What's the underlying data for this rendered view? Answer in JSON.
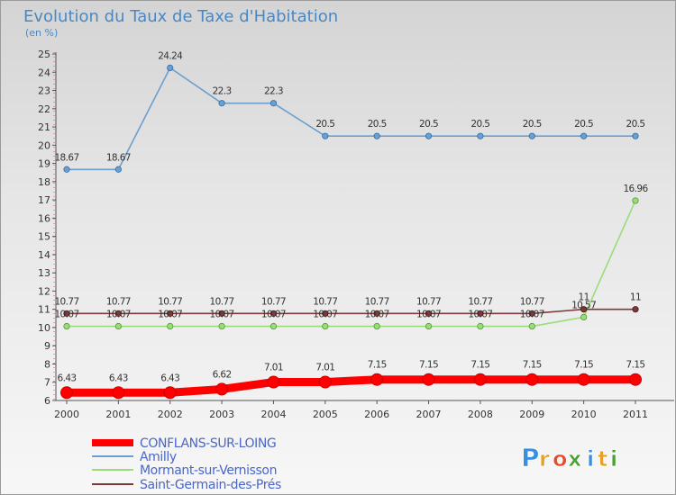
{
  "chart_data": {
    "type": "line",
    "title": "Evolution du Taux de Taxe d'Habitation",
    "subtitle": "(en %)",
    "xlabel": "",
    "ylabel": "",
    "categories": [
      "2000",
      "2001",
      "2002",
      "2003",
      "2004",
      "2005",
      "2006",
      "2007",
      "2008",
      "2009",
      "2010",
      "2011"
    ],
    "ylim": [
      6,
      25
    ],
    "yticks": [
      6,
      7,
      8,
      9,
      10,
      11,
      12,
      13,
      14,
      15,
      16,
      17,
      18,
      19,
      20,
      21,
      22,
      23,
      24,
      25
    ],
    "series": [
      {
        "name": "CONFLANS-SUR-LOING",
        "color": "#ff0000",
        "values": [
          6.43,
          6.43,
          6.43,
          6.62,
          7.01,
          7.01,
          7.15,
          7.15,
          7.15,
          7.15,
          7.15,
          7.15
        ],
        "labels": [
          "6.43",
          "6.43",
          "6.43",
          "6.62",
          "7.01",
          "7.01",
          "7.15",
          "7.15",
          "7.15",
          "7.15",
          "7.15",
          "7.15"
        ]
      },
      {
        "name": "Amilly",
        "color": "#6b9fcf",
        "values": [
          18.67,
          18.67,
          24.24,
          22.3,
          22.3,
          20.5,
          20.5,
          20.5,
          20.5,
          20.5,
          20.5,
          20.5
        ],
        "labels": [
          "18.67",
          "18.67",
          "24.24",
          "22.3",
          "22.3",
          "20.5",
          "20.5",
          "20.5",
          "20.5",
          "20.5",
          "20.5",
          "20.5"
        ]
      },
      {
        "name": "Mormant-sur-Vernisson",
        "color": "#99dd77",
        "values": [
          10.07,
          10.07,
          10.07,
          10.07,
          10.07,
          10.07,
          10.07,
          10.07,
          10.07,
          10.07,
          10.57,
          16.96
        ],
        "labels": [
          "10.07",
          "10.07",
          "10.07",
          "10.07",
          "10.07",
          "10.07",
          "10.07",
          "10.07",
          "10.07",
          "10.07",
          "10.57",
          "16.96"
        ]
      },
      {
        "name": "Saint-Germain-des-Prés",
        "color": "#7a3a3a",
        "values": [
          10.77,
          10.77,
          10.77,
          10.77,
          10.77,
          10.77,
          10.77,
          10.77,
          10.77,
          10.77,
          11,
          11
        ],
        "labels": [
          "10.77",
          "10.77",
          "10.77",
          "10.77",
          "10.77",
          "10.77",
          "10.77",
          "10.77",
          "10.77",
          "10.77",
          "11",
          "11"
        ]
      }
    ],
    "legend_position": "bottom-left",
    "grid": false
  },
  "brand": {
    "letters": [
      "P",
      "r",
      "o",
      "x",
      "i",
      "t",
      "i"
    ],
    "colors": [
      "#3a8ee0",
      "#e8a020",
      "#e84a2a",
      "#4aa030",
      "#3a8ee0",
      "#e8a020",
      "#4aa030"
    ]
  }
}
